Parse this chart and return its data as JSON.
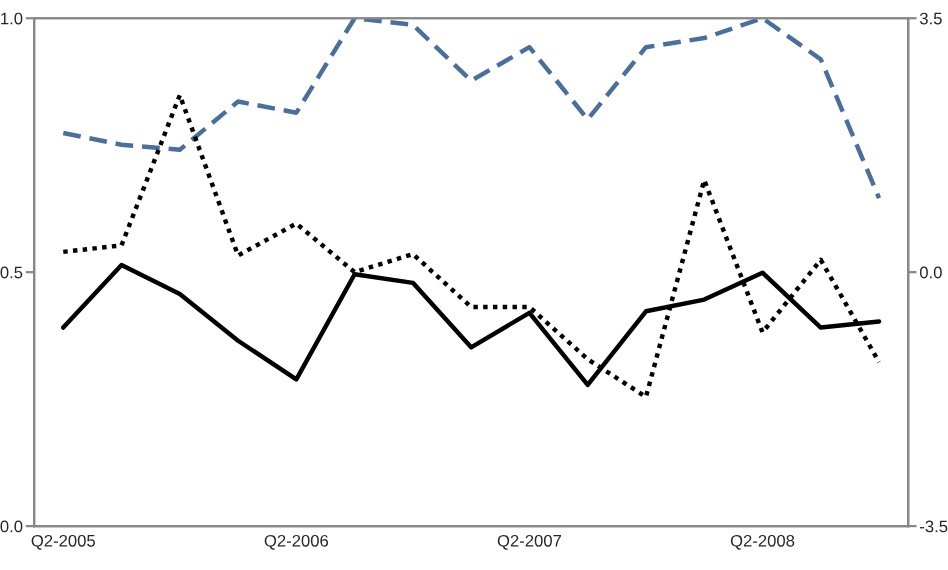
{
  "chart_data": {
    "type": "line",
    "categories": [
      "Q2-2005",
      null,
      null,
      null,
      "Q2-2006",
      null,
      null,
      null,
      "Q2-2007",
      null,
      null,
      null,
      "Q2-2008",
      null,
      null
    ],
    "ylim": [
      0,
      1
    ],
    "yticks": [
      {
        "value": 0,
        "label": "0.0"
      },
      {
        "value": 0.5,
        "label": "0.5"
      },
      {
        "value": 1,
        "label": "1.0"
      }
    ],
    "y2lim": [
      -3.5,
      3.5
    ],
    "y2ticks": [
      {
        "value": -3.5,
        "label": "-3.5"
      },
      {
        "value": 0,
        "label": "0.0"
      },
      {
        "value": 3.5,
        "label": "3.5"
      }
    ],
    "grid": false,
    "series": [
      {
        "color": "#000000",
        "line_style": "solid",
        "values": [
          0.391,
          0.514,
          0.457,
          0.365,
          0.289,
          0.496,
          0.479,
          0.352,
          0.42,
          0.278,
          0.423,
          0.446,
          0.499,
          0.391,
          0.403
        ]
      },
      {
        "color": "#4a6f9a",
        "line_style": "dashed",
        "values": [
          0.774,
          0.751,
          0.741,
          0.836,
          0.814,
          1.0,
          0.987,
          0.877,
          0.943,
          0.801,
          0.943,
          0.961,
          1.0,
          0.919,
          0.646
        ]
      },
      {
        "color": "#000000",
        "line_style": "dotted",
        "axis": "y2",
        "values": [
          0.28,
          0.37,
          2.44,
          0.23,
          0.67,
          0.0,
          0.25,
          -0.48,
          -0.48,
          -1.2,
          -1.72,
          1.27,
          -0.83,
          0.17,
          -1.24
        ]
      }
    ]
  }
}
